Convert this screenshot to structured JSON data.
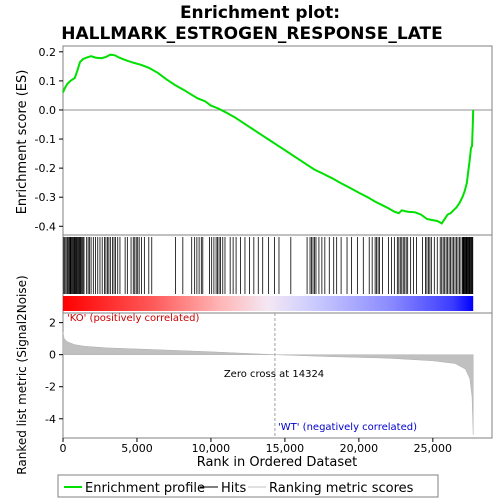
{
  "chart_data": {
    "type": "line",
    "title_line1": "Enrichment plot:",
    "title_line2": "HALLMARK_ESTROGEN_RESPONSE_LATE",
    "es_panel": {
      "ylabel": "Enrichment score (ES)",
      "ylim": [
        -0.43,
        0.22
      ],
      "yticks": [
        {
          "value": 0.2,
          "label": "0.2"
        },
        {
          "value": 0.1,
          "label": "0.1"
        },
        {
          "value": 0.0,
          "label": "0.0"
        },
        {
          "value": -0.1,
          "label": "-0.1"
        },
        {
          "value": -0.2,
          "label": "-0.2"
        },
        {
          "value": -0.3,
          "label": "-0.3"
        },
        {
          "value": -0.4,
          "label": "-0.4"
        }
      ],
      "series_color": "#00e000",
      "points": [
        [
          0,
          0.06
        ],
        [
          120,
          0.075
        ],
        [
          300,
          0.09
        ],
        [
          500,
          0.1
        ],
        [
          800,
          0.11
        ],
        [
          1000,
          0.14
        ],
        [
          1150,
          0.165
        ],
        [
          1350,
          0.175
        ],
        [
          1600,
          0.18
        ],
        [
          1900,
          0.185
        ],
        [
          2200,
          0.18
        ],
        [
          2600,
          0.178
        ],
        [
          2900,
          0.182
        ],
        [
          3200,
          0.19
        ],
        [
          3500,
          0.188
        ],
        [
          3800,
          0.18
        ],
        [
          4300,
          0.17
        ],
        [
          4800,
          0.162
        ],
        [
          5300,
          0.155
        ],
        [
          5800,
          0.145
        ],
        [
          6400,
          0.128
        ],
        [
          7000,
          0.105
        ],
        [
          7600,
          0.085
        ],
        [
          8200,
          0.068
        ],
        [
          8700,
          0.052
        ],
        [
          9100,
          0.04
        ],
        [
          9600,
          0.03
        ],
        [
          10000,
          0.015
        ],
        [
          10500,
          0.005
        ],
        [
          11000,
          -0.008
        ],
        [
          11600,
          -0.025
        ],
        [
          12200,
          -0.045
        ],
        [
          12800,
          -0.065
        ],
        [
          13400,
          -0.085
        ],
        [
          14000,
          -0.105
        ],
        [
          14600,
          -0.125
        ],
        [
          15200,
          -0.145
        ],
        [
          15800,
          -0.165
        ],
        [
          16400,
          -0.185
        ],
        [
          17000,
          -0.205
        ],
        [
          17600,
          -0.22
        ],
        [
          18200,
          -0.235
        ],
        [
          18800,
          -0.252
        ],
        [
          19400,
          -0.268
        ],
        [
          20000,
          -0.285
        ],
        [
          20600,
          -0.3
        ],
        [
          21100,
          -0.315
        ],
        [
          21600,
          -0.328
        ],
        [
          22000,
          -0.338
        ],
        [
          22400,
          -0.35
        ],
        [
          22700,
          -0.355
        ],
        [
          22900,
          -0.345
        ],
        [
          23300,
          -0.35
        ],
        [
          23800,
          -0.352
        ],
        [
          24200,
          -0.36
        ],
        [
          24600,
          -0.375
        ],
        [
          24900,
          -0.378
        ],
        [
          25300,
          -0.382
        ],
        [
          25600,
          -0.39
        ],
        [
          25800,
          -0.375
        ],
        [
          26000,
          -0.36
        ],
        [
          26200,
          -0.355
        ],
        [
          26400,
          -0.345
        ],
        [
          26600,
          -0.335
        ],
        [
          26800,
          -0.32
        ],
        [
          27000,
          -0.3
        ],
        [
          27150,
          -0.28
        ],
        [
          27300,
          -0.25
        ],
        [
          27400,
          -0.21
        ],
        [
          27500,
          -0.17
        ],
        [
          27580,
          -0.13
        ],
        [
          27650,
          -0.125
        ],
        [
          27700,
          -0.05
        ],
        [
          27730,
          0.0
        ]
      ]
    },
    "hits": [
      60,
      130,
      210,
      290,
      350,
      420,
      480,
      530,
      590,
      640,
      700,
      760,
      810,
      870,
      920,
      980,
      1030,
      1090,
      1150,
      1210,
      1280,
      1350,
      1420,
      1600,
      1700,
      1800,
      1900,
      2050,
      2200,
      2350,
      2500,
      2650,
      2800,
      2900,
      3000,
      3100,
      3200,
      3350,
      3450,
      3550,
      3700,
      3850,
      4200,
      4350,
      4600,
      4750,
      4850,
      4950,
      5050,
      5150,
      5300,
      5500,
      5800,
      6000,
      7600,
      8100,
      8700,
      8900,
      9050,
      9200,
      9350,
      9450,
      9900,
      10050,
      10200,
      10350,
      10450,
      10550,
      10650,
      10800,
      10950,
      11300,
      11500,
      11700,
      12000,
      12300,
      12600,
      12900,
      13200,
      13500,
      13900,
      14300,
      14600,
      15400,
      16500,
      16700,
      16800,
      16900,
      17000,
      17100,
      17300,
      17500,
      17700,
      18000,
      18300,
      18500,
      18800,
      19200,
      19500,
      19900,
      20300,
      20700,
      20900,
      21100,
      21200,
      21300,
      21400,
      21600,
      22000,
      22200,
      22400,
      22600,
      22700,
      22800,
      22900,
      23000,
      23100,
      23200,
      23300,
      23500,
      23700,
      23900,
      24300,
      24500,
      24600,
      24700,
      24800,
      24900,
      25100,
      25300,
      25500,
      25600,
      25700,
      25800,
      25900,
      26000,
      26100,
      26200,
      26300,
      26400,
      26500,
      26600,
      26700,
      26800,
      26900,
      27000,
      27050,
      27100,
      27150,
      27200,
      27250,
      27300,
      27350,
      27400,
      27450,
      27500,
      27550,
      27600,
      27650,
      27700
    ],
    "metric_panel": {
      "ylabel": "Ranked list metric (Signal2Noise)",
      "ylim": [
        -5.2,
        2.6
      ],
      "yticks": [
        {
          "value": 2,
          "label": "2"
        },
        {
          "value": 0,
          "label": "0"
        },
        {
          "value": -2,
          "label": "-2"
        },
        {
          "value": -4,
          "label": "-4"
        }
      ],
      "profile": [
        [
          0,
          1.4
        ],
        [
          80,
          1.0
        ],
        [
          300,
          0.8
        ],
        [
          800,
          0.62
        ],
        [
          1500,
          0.52
        ],
        [
          3000,
          0.42
        ],
        [
          6000,
          0.32
        ],
        [
          10000,
          0.18
        ],
        [
          14324,
          0.0
        ],
        [
          18000,
          -0.12
        ],
        [
          22000,
          -0.22
        ],
        [
          25000,
          -0.38
        ],
        [
          26500,
          -0.55
        ],
        [
          27200,
          -0.9
        ],
        [
          27500,
          -1.5
        ],
        [
          27650,
          -2.6
        ],
        [
          27730,
          -5.0
        ]
      ],
      "zero_cross_label": "Zero cross at 14324",
      "zero_cross": 14324,
      "pos_label": "'KO' (positively correlated)",
      "neg_label": "'WT' (negatively correlated)"
    },
    "xlabel": "Rank in Ordered Dataset",
    "xlim": [
      0,
      29000
    ],
    "xticks": [
      {
        "value": 0,
        "label": "0"
      },
      {
        "value": 5000,
        "label": "5,000"
      },
      {
        "value": 10000,
        "label": "10,000"
      },
      {
        "value": 15000,
        "label": "15,000"
      },
      {
        "value": 20000,
        "label": "20,000"
      },
      {
        "value": 25000,
        "label": "25,000"
      }
    ],
    "n_genes": 27730,
    "legend": {
      "placement": "bottom",
      "entries": [
        {
          "label": "Enrichment profile",
          "color": "#00e000"
        },
        {
          "label": "Hits",
          "color": "#000000"
        },
        {
          "label": "Ranking metric scores",
          "color": "#c0c0c0"
        }
      ]
    }
  }
}
